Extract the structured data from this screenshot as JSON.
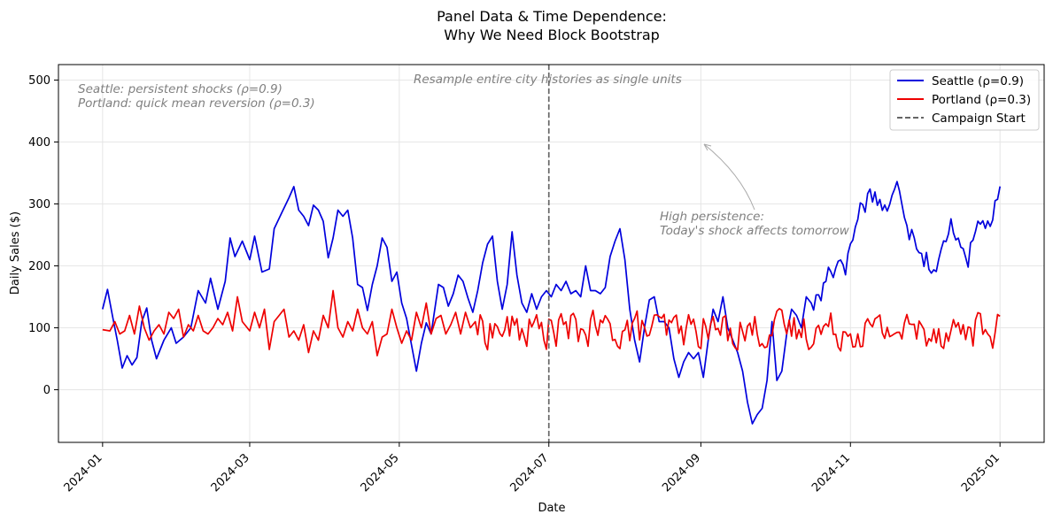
{
  "chart_data": {
    "type": "line",
    "title_lines": [
      "Panel Data & Time Dependence:",
      "Why We Need Block Bootstrap"
    ],
    "xlabel": "Date",
    "ylabel": "Daily Sales ($)",
    "xlim": [
      "2023-12-14",
      "2025-01-19"
    ],
    "ylim": [
      -85,
      525
    ],
    "x_ticks": [
      "2024-01-01",
      "2024-03-01",
      "2024-05-01",
      "2024-07-01",
      "2024-09-01",
      "2024-11-01",
      "2025-01-01"
    ],
    "x_tick_labels": [
      "2024-01",
      "2024-03",
      "2024-05",
      "2024-07",
      "2024-09",
      "2024-11",
      "2025-01"
    ],
    "y_ticks": [
      0,
      100,
      200,
      300,
      400,
      500
    ],
    "y_tick_labels": [
      "0",
      "100",
      "200",
      "300",
      "400",
      "500"
    ],
    "grid": true,
    "legend_position": "top-right",
    "x_start": "2024-01-01",
    "x_end": "2025-01-01",
    "series": [
      {
        "name": "Seattle (ρ=0.9)",
        "color": "#0000dd",
        "anchors": [
          [
            "2024-01-01",
            130
          ],
          [
            "2024-01-03",
            162
          ],
          [
            "2024-01-05",
            120
          ],
          [
            "2024-01-07",
            80
          ],
          [
            "2024-01-09",
            35
          ],
          [
            "2024-01-11",
            55
          ],
          [
            "2024-01-13",
            40
          ],
          [
            "2024-01-15",
            52
          ],
          [
            "2024-01-17",
            110
          ],
          [
            "2024-01-19",
            132
          ],
          [
            "2024-01-21",
            80
          ],
          [
            "2024-01-23",
            50
          ],
          [
            "2024-01-26",
            80
          ],
          [
            "2024-01-29",
            100
          ],
          [
            "2024-01-31",
            75
          ],
          [
            "2024-02-03",
            85
          ],
          [
            "2024-02-06",
            100
          ],
          [
            "2024-02-09",
            160
          ],
          [
            "2024-02-12",
            140
          ],
          [
            "2024-02-14",
            180
          ],
          [
            "2024-02-17",
            130
          ],
          [
            "2024-02-20",
            175
          ],
          [
            "2024-02-22",
            245
          ],
          [
            "2024-02-24",
            215
          ],
          [
            "2024-02-27",
            240
          ],
          [
            "2024-03-01",
            210
          ],
          [
            "2024-03-03",
            248
          ],
          [
            "2024-03-06",
            190
          ],
          [
            "2024-03-09",
            195
          ],
          [
            "2024-03-11",
            260
          ],
          [
            "2024-03-14",
            285
          ],
          [
            "2024-03-17",
            310
          ],
          [
            "2024-03-19",
            328
          ],
          [
            "2024-03-21",
            290
          ],
          [
            "2024-03-23",
            280
          ],
          [
            "2024-03-25",
            265
          ],
          [
            "2024-03-27",
            298
          ],
          [
            "2024-03-29",
            290
          ],
          [
            "2024-03-31",
            272
          ],
          [
            "2024-04-02",
            213
          ],
          [
            "2024-04-04",
            245
          ],
          [
            "2024-04-06",
            290
          ],
          [
            "2024-04-08",
            280
          ],
          [
            "2024-04-10",
            290
          ],
          [
            "2024-04-12",
            245
          ],
          [
            "2024-04-14",
            170
          ],
          [
            "2024-04-16",
            165
          ],
          [
            "2024-04-18",
            128
          ],
          [
            "2024-04-20",
            170
          ],
          [
            "2024-04-22",
            200
          ],
          [
            "2024-04-24",
            245
          ],
          [
            "2024-04-26",
            230
          ],
          [
            "2024-04-28",
            175
          ],
          [
            "2024-04-30",
            190
          ],
          [
            "2024-05-02",
            140
          ],
          [
            "2024-05-04",
            115
          ],
          [
            "2024-05-06",
            72
          ],
          [
            "2024-05-08",
            30
          ],
          [
            "2024-05-10",
            75
          ],
          [
            "2024-05-12",
            108
          ],
          [
            "2024-05-14",
            90
          ],
          [
            "2024-05-17",
            170
          ],
          [
            "2024-05-19",
            165
          ],
          [
            "2024-05-21",
            135
          ],
          [
            "2024-05-23",
            155
          ],
          [
            "2024-05-25",
            185
          ],
          [
            "2024-05-27",
            175
          ],
          [
            "2024-05-29",
            148
          ],
          [
            "2024-05-31",
            125
          ],
          [
            "2024-06-02",
            160
          ],
          [
            "2024-06-04",
            205
          ],
          [
            "2024-06-06",
            235
          ],
          [
            "2024-06-08",
            248
          ],
          [
            "2024-06-10",
            175
          ],
          [
            "2024-06-12",
            130
          ],
          [
            "2024-06-14",
            170
          ],
          [
            "2024-06-16",
            255
          ],
          [
            "2024-06-18",
            185
          ],
          [
            "2024-06-20",
            140
          ],
          [
            "2024-06-22",
            125
          ],
          [
            "2024-06-24",
            155
          ],
          [
            "2024-06-26",
            130
          ],
          [
            "2024-06-28",
            150
          ],
          [
            "2024-06-30",
            160
          ],
          [
            "2024-07-02",
            150
          ],
          [
            "2024-07-04",
            170
          ],
          [
            "2024-07-06",
            160
          ],
          [
            "2024-07-08",
            175
          ],
          [
            "2024-07-10",
            155
          ],
          [
            "2024-07-12",
            160
          ],
          [
            "2024-07-14",
            150
          ],
          [
            "2024-07-16",
            200
          ],
          [
            "2024-07-18",
            160
          ],
          [
            "2024-07-20",
            160
          ],
          [
            "2024-07-22",
            155
          ],
          [
            "2024-07-24",
            165
          ],
          [
            "2024-07-26",
            215
          ],
          [
            "2024-07-28",
            240
          ],
          [
            "2024-07-30",
            260
          ],
          [
            "2024-08-01",
            210
          ],
          [
            "2024-08-03",
            130
          ],
          [
            "2024-08-05",
            80
          ],
          [
            "2024-08-07",
            45
          ],
          [
            "2024-08-09",
            100
          ],
          [
            "2024-08-11",
            145
          ],
          [
            "2024-08-13",
            150
          ],
          [
            "2024-08-15",
            110
          ],
          [
            "2024-08-17",
            110
          ],
          [
            "2024-08-19",
            100
          ],
          [
            "2024-08-21",
            50
          ],
          [
            "2024-08-23",
            20
          ],
          [
            "2024-08-25",
            45
          ],
          [
            "2024-08-27",
            60
          ],
          [
            "2024-08-29",
            50
          ],
          [
            "2024-08-31",
            60
          ],
          [
            "2024-09-02",
            20
          ],
          [
            "2024-09-04",
            80
          ],
          [
            "2024-09-06",
            130
          ],
          [
            "2024-09-08",
            110
          ],
          [
            "2024-09-10",
            150
          ],
          [
            "2024-09-12",
            100
          ],
          [
            "2024-09-14",
            80
          ],
          [
            "2024-09-16",
            60
          ],
          [
            "2024-09-18",
            30
          ],
          [
            "2024-09-20",
            -20
          ],
          [
            "2024-09-22",
            -55
          ],
          [
            "2024-09-24",
            -40
          ],
          [
            "2024-09-26",
            -30
          ],
          [
            "2024-09-28",
            15
          ],
          [
            "2024-09-30",
            110
          ],
          [
            "2024-10-02",
            15
          ],
          [
            "2024-10-04",
            30
          ],
          [
            "2024-10-06",
            90
          ],
          [
            "2024-10-08",
            130
          ],
          [
            "2024-10-10",
            120
          ],
          [
            "2024-10-12",
            100
          ],
          [
            "2024-10-14",
            150
          ],
          [
            "2024-10-16",
            140
          ]
        ]
      },
      {
        "name": "Portland (ρ=0.3)",
        "color": "#ee0000",
        "anchors": [
          [
            "2024-01-01",
            97
          ],
          [
            "2024-01-04",
            95
          ],
          [
            "2024-01-06",
            110
          ],
          [
            "2024-01-08",
            90
          ],
          [
            "2024-01-10",
            95
          ],
          [
            "2024-01-12",
            120
          ],
          [
            "2024-01-14",
            90
          ],
          [
            "2024-01-16",
            135
          ],
          [
            "2024-01-18",
            100
          ],
          [
            "2024-01-20",
            80
          ],
          [
            "2024-01-22",
            95
          ],
          [
            "2024-01-24",
            105
          ],
          [
            "2024-01-26",
            90
          ],
          [
            "2024-01-28",
            125
          ],
          [
            "2024-01-30",
            115
          ],
          [
            "2024-02-01",
            130
          ],
          [
            "2024-02-03",
            85
          ],
          [
            "2024-02-05",
            105
          ],
          [
            "2024-02-07",
            95
          ],
          [
            "2024-02-09",
            120
          ],
          [
            "2024-02-11",
            95
          ],
          [
            "2024-02-13",
            90
          ],
          [
            "2024-02-15",
            100
          ],
          [
            "2024-02-17",
            115
          ],
          [
            "2024-02-19",
            105
          ],
          [
            "2024-02-21",
            125
          ],
          [
            "2024-02-23",
            95
          ],
          [
            "2024-02-25",
            150
          ],
          [
            "2024-02-27",
            110
          ],
          [
            "2024-03-01",
            95
          ],
          [
            "2024-03-03",
            125
          ],
          [
            "2024-03-05",
            100
          ],
          [
            "2024-03-07",
            130
          ],
          [
            "2024-03-09",
            65
          ],
          [
            "2024-03-11",
            110
          ],
          [
            "2024-03-13",
            120
          ],
          [
            "2024-03-15",
            130
          ],
          [
            "2024-03-17",
            85
          ],
          [
            "2024-03-19",
            95
          ],
          [
            "2024-03-21",
            80
          ],
          [
            "2024-03-23",
            105
          ],
          [
            "2024-03-25",
            60
          ],
          [
            "2024-03-27",
            95
          ],
          [
            "2024-03-29",
            80
          ],
          [
            "2024-03-31",
            120
          ],
          [
            "2024-04-02",
            100
          ],
          [
            "2024-04-04",
            160
          ],
          [
            "2024-04-06",
            100
          ],
          [
            "2024-04-08",
            85
          ],
          [
            "2024-04-10",
            110
          ],
          [
            "2024-04-12",
            95
          ],
          [
            "2024-04-14",
            130
          ],
          [
            "2024-04-16",
            100
          ],
          [
            "2024-04-18",
            90
          ],
          [
            "2024-04-20",
            110
          ],
          [
            "2024-04-22",
            55
          ],
          [
            "2024-04-24",
            85
          ],
          [
            "2024-04-26",
            90
          ],
          [
            "2024-04-28",
            130
          ],
          [
            "2024-04-30",
            100
          ],
          [
            "2024-05-02",
            75
          ],
          [
            "2024-05-04",
            95
          ],
          [
            "2024-05-06",
            80
          ],
          [
            "2024-05-08",
            125
          ],
          [
            "2024-05-10",
            100
          ],
          [
            "2024-05-12",
            140
          ],
          [
            "2024-05-14",
            90
          ],
          [
            "2024-05-16",
            115
          ],
          [
            "2024-05-18",
            120
          ],
          [
            "2024-05-20",
            90
          ],
          [
            "2024-05-22",
            105
          ],
          [
            "2024-05-24",
            125
          ],
          [
            "2024-05-26",
            90
          ],
          [
            "2024-05-28",
            125
          ],
          [
            "2024-05-30",
            100
          ],
          [
            "2024-06-01",
            110
          ]
        ]
      }
    ],
    "vertical_lines": [
      {
        "name": "Campaign Start",
        "x": "2024-07-01",
        "color": "#666666",
        "style": "dashed"
      }
    ],
    "annotations": [
      {
        "lines": [
          "Seattle: persistent shocks (ρ=0.9)",
          "Portland: quick mean reversion (ρ=0.3)"
        ],
        "color": "#808080"
      },
      {
        "lines": [
          "Resample entire city histories as single units"
        ],
        "color": "#808080"
      },
      {
        "lines": [
          "High persistence:",
          "Today's shock affects tomorrow"
        ],
        "color": "#808080",
        "arrow_to": [
          "2024-09-01",
          400
        ]
      }
    ]
  }
}
